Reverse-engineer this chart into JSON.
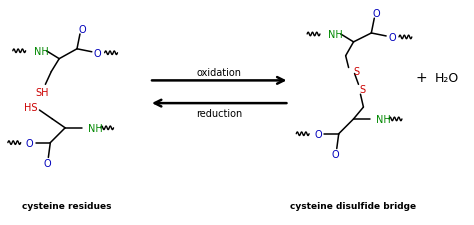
{
  "bg_color": "#ffffff",
  "label_left": "cysteine residues",
  "label_right": "cysteine disulfide bridge",
  "arrow_oxidation": "oxidation",
  "arrow_reduction": "reduction",
  "colors": {
    "black": "#000000",
    "blue": "#0000bb",
    "green": "#008800",
    "red": "#cc0000"
  },
  "figsize": [
    4.74,
    2.26
  ],
  "dpi": 100
}
